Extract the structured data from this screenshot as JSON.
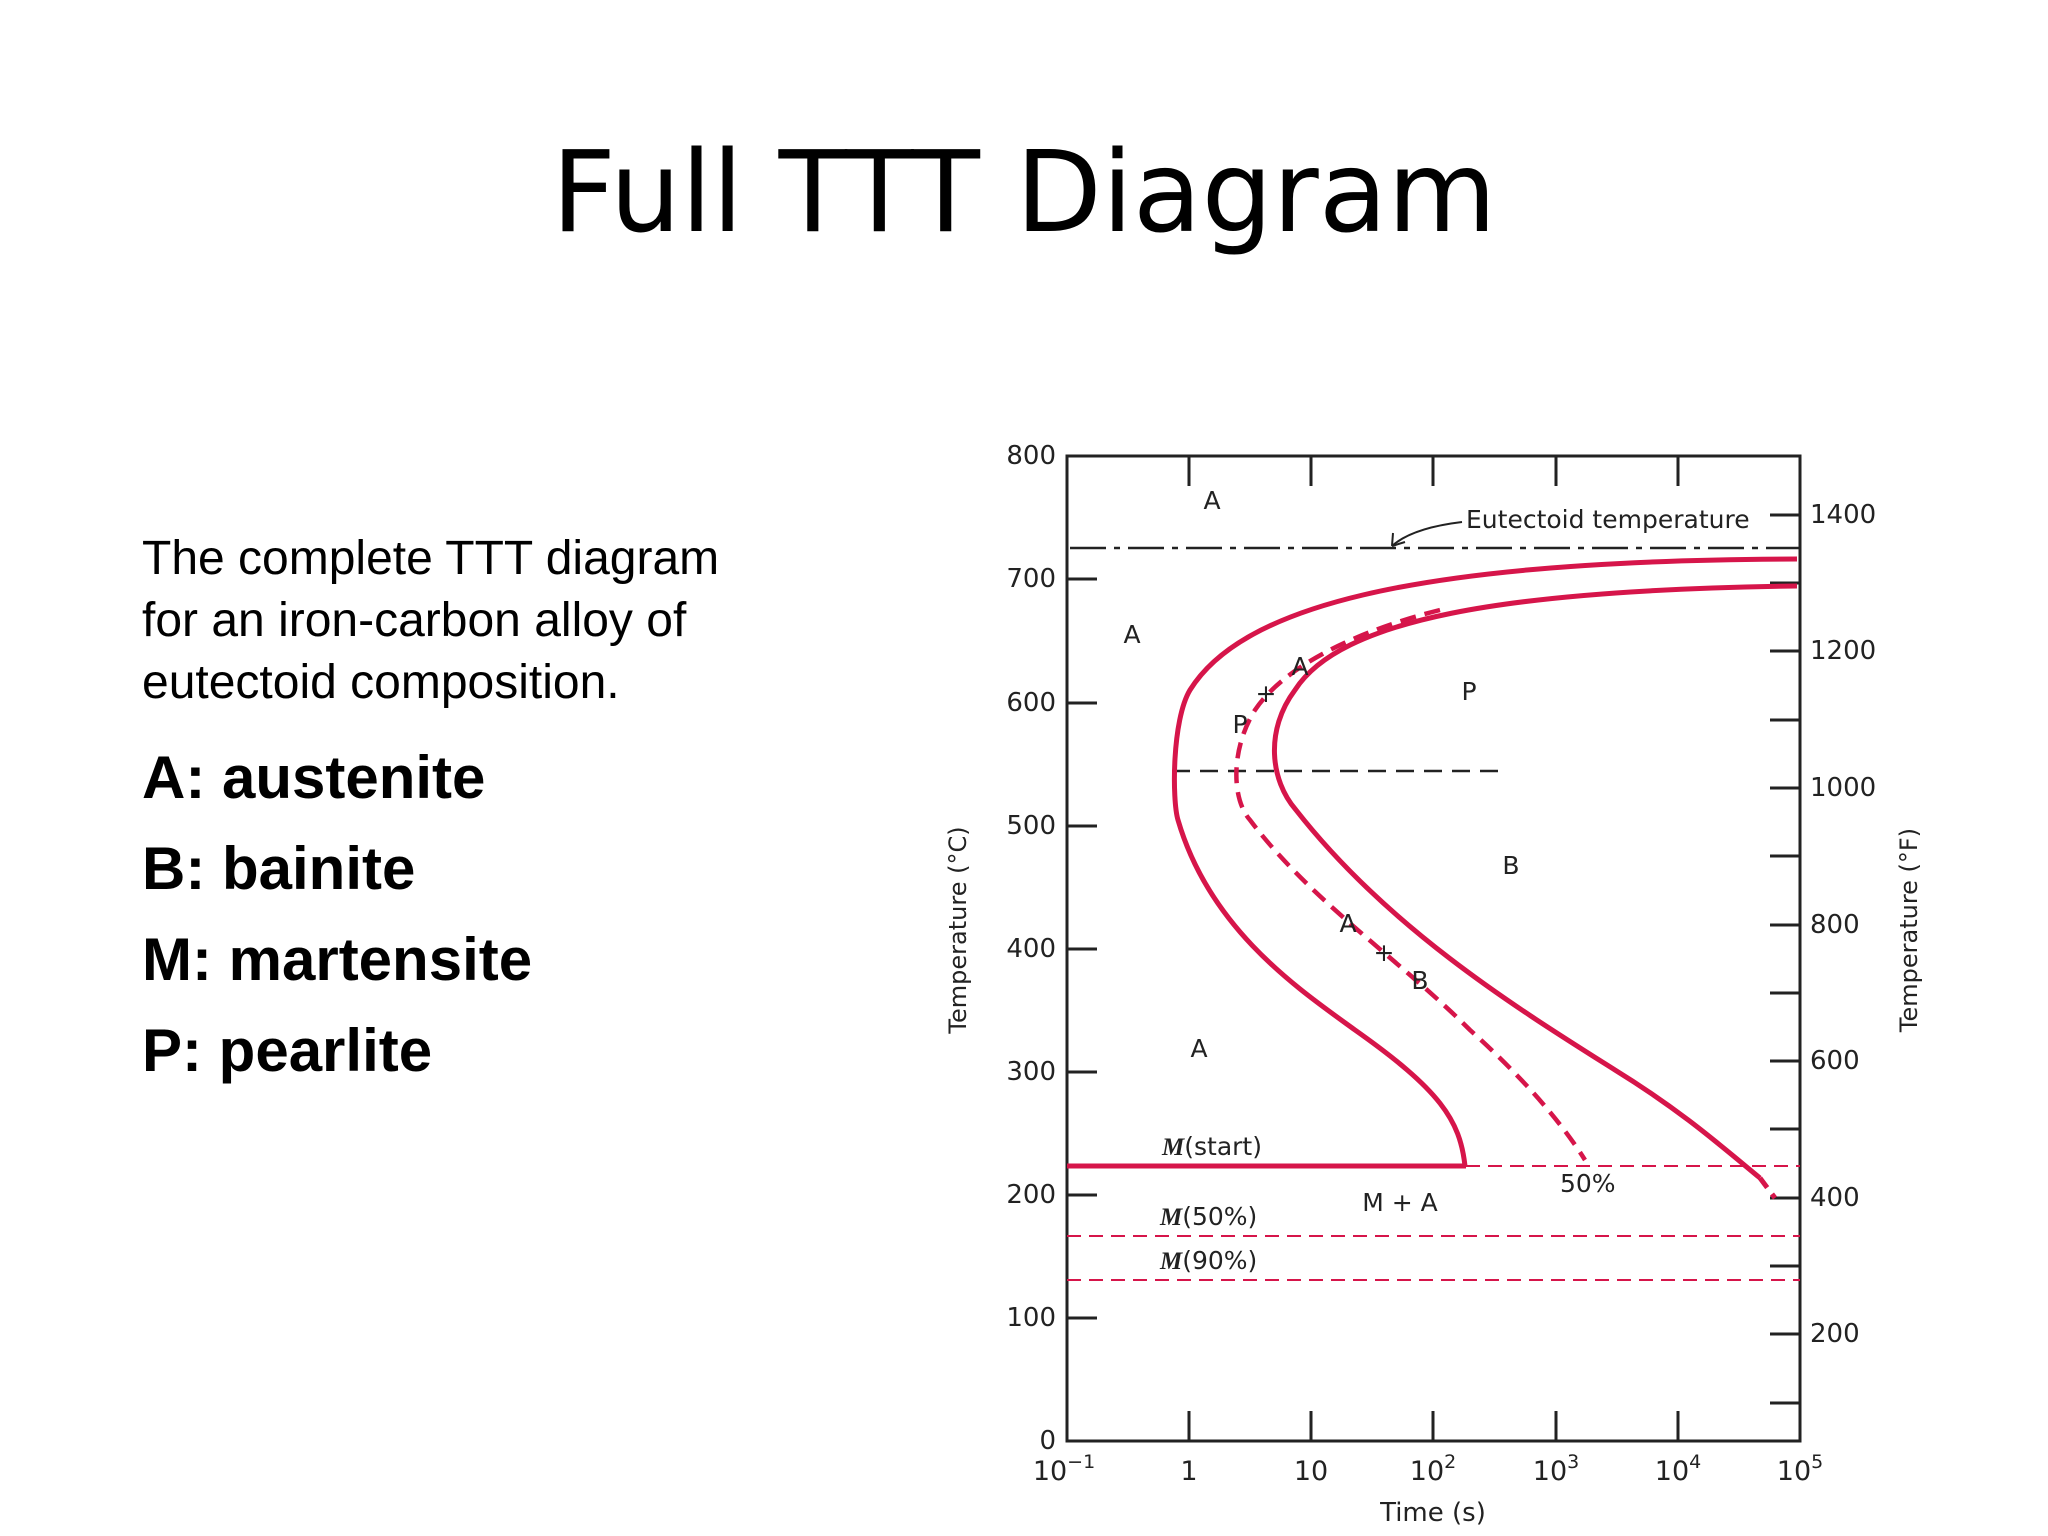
{
  "title": "Full TTT Diagram",
  "intro_text": "The complete TTT diagram for an iron-carbon alloy of eutectoid composition.",
  "legend": [
    {
      "label": "A: austenite"
    },
    {
      "label": "B: bainite"
    },
    {
      "label": "M: martensite"
    },
    {
      "label": "P: pearlite"
    }
  ],
  "diagram": {
    "y_axis_label": "Temperature (°C)",
    "y2_axis_label": "Temperature (°F)",
    "x_axis_label": "Time (s)",
    "y_ticks_c": [
      "0",
      "100",
      "200",
      "300",
      "400",
      "500",
      "600",
      "700",
      "800"
    ],
    "y_ticks_f": [
      "200",
      "400",
      "600",
      "800",
      "1000",
      "1200",
      "1400"
    ],
    "x_ticks": [
      "10",
      "1",
      "10",
      "10",
      "10",
      "10",
      "10"
    ],
    "x_tick_exponents": [
      "−1",
      "",
      "",
      "2",
      "3",
      "4",
      "5"
    ],
    "eutectoid_label": "Eutectoid temperature",
    "eutectoid_temp_c": 727,
    "nose_temp_c": 540,
    "ms_temp_c": 220,
    "m50_temp_c": 165,
    "m90_temp_c": 130,
    "m_start_label": "(start)",
    "m50_label": "(50%)",
    "m90_label": "(90%)",
    "m_symbol": "M",
    "fifty_percent_label": "50%",
    "region_labels": {
      "a_top": "A",
      "a_left": "A",
      "a_lower": "A",
      "p_right": "P",
      "b_right": "B",
      "m_plus_a": "M + A",
      "mix_upper_a": "A",
      "mix_upper_plus": "+",
      "mix_upper_p": "P",
      "mix_lower_a": "A",
      "mix_lower_plus": "+",
      "mix_lower_b": "B"
    },
    "colors": {
      "curve": "#d6154a",
      "axis": "#222222"
    }
  }
}
